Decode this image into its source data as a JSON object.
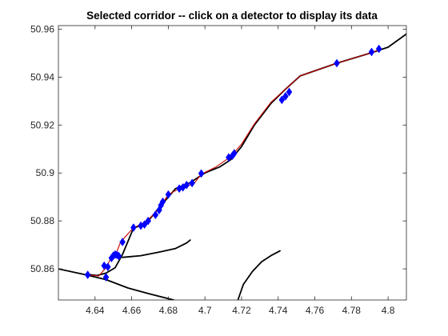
{
  "chart_data": {
    "type": "line",
    "title": "Selected corridor -- click on a detector to display its data",
    "xlabel": "",
    "ylabel": "",
    "xlim": [
      4.62,
      4.81
    ],
    "ylim": [
      50.847,
      50.9615
    ],
    "grid": false,
    "x_ticks": [
      "4.64",
      "4.66",
      "4.68",
      "4.7",
      "4.72",
      "4.74",
      "4.76",
      "4.78",
      "4.8"
    ],
    "y_ticks": [
      "50.86",
      "50.88",
      "50.9",
      "50.92",
      "50.94",
      "50.96"
    ],
    "colors": {
      "roads": "#000000",
      "corridor": "#cc0000",
      "detectors": "#0000ff"
    },
    "roads": [
      {
        "x": [
          4.62,
          4.635,
          4.646,
          4.658,
          4.67,
          4.683
        ],
        "y": [
          50.86,
          50.8575,
          50.8555,
          50.852,
          50.8495,
          50.847
        ]
      },
      {
        "x": [
          4.651,
          4.655,
          4.665,
          4.675,
          4.684,
          4.69,
          4.692
        ],
        "y": [
          50.866,
          50.8648,
          50.8655,
          50.867,
          50.8685,
          50.8708,
          50.872
        ]
      },
      {
        "x": [
          4.718,
          4.721,
          4.726,
          4.731,
          4.736,
          4.741
        ],
        "y": [
          50.847,
          50.8535,
          50.859,
          50.863,
          50.8655,
          50.8675
        ]
      },
      {
        "x": [
          4.636,
          4.641,
          4.646,
          4.651,
          4.655,
          4.661,
          4.668,
          4.675,
          4.684,
          4.692,
          4.7,
          4.708,
          4.714,
          4.72,
          4.727,
          4.736,
          4.744,
          4.752,
          4.772,
          4.791,
          4.8,
          4.81
        ],
        "y": [
          50.8577,
          50.8572,
          50.8582,
          50.8605,
          50.866,
          50.877,
          50.879,
          50.8855,
          50.8935,
          50.896,
          50.9,
          50.9025,
          50.9055,
          50.911,
          50.92,
          50.929,
          50.935,
          50.9405,
          50.9458,
          50.9502,
          50.9525,
          50.958
        ]
      }
    ],
    "corridor": {
      "x": [
        4.636,
        4.642,
        4.646,
        4.648,
        4.651,
        4.654,
        4.661,
        4.665,
        4.669,
        4.673,
        4.677,
        4.68,
        4.686,
        4.69,
        4.694,
        4.698,
        4.706,
        4.714,
        4.72,
        4.727,
        4.736,
        4.744,
        4.752,
        4.772,
        4.791,
        4.795
      ],
      "y": [
        50.8575,
        50.857,
        50.8605,
        50.8635,
        50.8655,
        50.8712,
        50.8772,
        50.8785,
        50.8805,
        50.8835,
        50.8875,
        50.891,
        50.8935,
        50.8945,
        50.8955,
        50.8995,
        50.9025,
        50.9068,
        50.912,
        50.9205,
        50.9295,
        50.935,
        50.9405,
        50.9458,
        50.9502,
        50.9515
      ]
    },
    "detectors": {
      "x": [
        4.636,
        4.646,
        4.647,
        4.645,
        4.649,
        4.651,
        4.652,
        4.653,
        4.65,
        4.655,
        4.661,
        4.665,
        4.667,
        4.669,
        4.673,
        4.675,
        4.676,
        4.677,
        4.68,
        4.686,
        4.688,
        4.69,
        4.693,
        4.698,
        4.713,
        4.715,
        4.716,
        4.742,
        4.744,
        4.746,
        4.772,
        4.791,
        4.795
      ],
      "y": [
        50.8575,
        50.8565,
        50.8608,
        50.8613,
        50.8645,
        50.866,
        50.8658,
        50.8653,
        50.8655,
        50.8712,
        50.8772,
        50.878,
        50.8785,
        50.88,
        50.8825,
        50.8845,
        50.8865,
        50.888,
        50.891,
        50.8935,
        50.894,
        50.895,
        50.8958,
        50.8998,
        50.9065,
        50.9072,
        50.9082,
        50.9305,
        50.932,
        50.9338,
        50.9458,
        50.9505,
        50.9518
      ]
    }
  }
}
